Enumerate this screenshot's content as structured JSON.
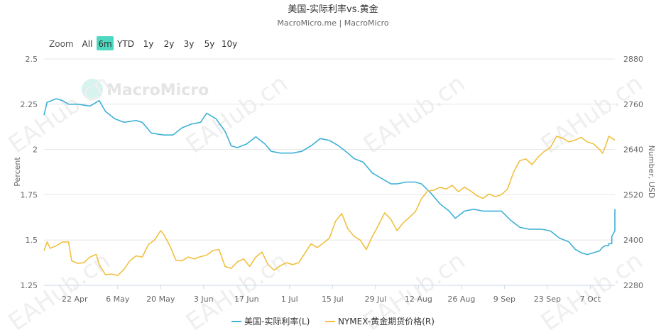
{
  "header": {
    "title": "美国-实际利率vs.黄金",
    "subtitle": "MacroMicro.me | MacroMicro"
  },
  "zoom": {
    "label": "Zoom",
    "buttons": [
      "All",
      "6m",
      "YTD",
      "1y",
      "2y",
      "3y",
      "5y",
      "10y"
    ],
    "selected": "6m"
  },
  "watermarks": {
    "logo_text": "MacroMicro",
    "repeat_text": "EAHub.cn"
  },
  "colors": {
    "rate": "#3fb1d6",
    "gold": "#f0c040",
    "zoom_selected": "#4fd8c0",
    "grid": "#e6e6e6"
  },
  "chart_data": {
    "type": "line",
    "x_ticks": [
      "22 Apr",
      "6 May",
      "20 May",
      "3 Jun",
      "17 Jun",
      "1 Jul",
      "15 Jul",
      "29 Jul",
      "12 Aug",
      "26 Aug",
      "9 Sep",
      "23 Sep",
      "7 Oct"
    ],
    "xrange": [
      "2024-04-12",
      "2024-10-15"
    ],
    "y_left": {
      "label": "Percent",
      "ticks": [
        "1.25",
        "1.5",
        "1.75",
        "2",
        "2.25",
        "2.5"
      ],
      "range": [
        1.25,
        2.5
      ]
    },
    "y_right": {
      "label": "Number, USD",
      "ticks": [
        "2280",
        "2400",
        "2520",
        "2640",
        "2760",
        "2880"
      ],
      "range": [
        2280,
        2880
      ]
    },
    "grid": true,
    "legend_position": "bottom-center",
    "series": [
      {
        "name": "美国-实际利率(L)",
        "axis": "left",
        "color": "#3fb1d6",
        "points": [
          [
            "2024-04-12",
            2.19
          ],
          [
            "2024-04-13",
            2.26
          ],
          [
            "2024-04-16",
            2.28
          ],
          [
            "2024-04-18",
            2.27
          ],
          [
            "2024-04-20",
            2.25
          ],
          [
            "2024-04-23",
            2.25
          ],
          [
            "2024-04-27",
            2.24
          ],
          [
            "2024-04-30",
            2.27
          ],
          [
            "2024-05-02",
            2.21
          ],
          [
            "2024-05-05",
            2.17
          ],
          [
            "2024-05-08",
            2.15
          ],
          [
            "2024-05-12",
            2.16
          ],
          [
            "2024-05-14",
            2.15
          ],
          [
            "2024-05-17",
            2.09
          ],
          [
            "2024-05-21",
            2.08
          ],
          [
            "2024-05-24",
            2.08
          ],
          [
            "2024-05-27",
            2.12
          ],
          [
            "2024-05-30",
            2.14
          ],
          [
            "2024-06-02",
            2.15
          ],
          [
            "2024-06-04",
            2.2
          ],
          [
            "2024-06-07",
            2.17
          ],
          [
            "2024-06-10",
            2.1
          ],
          [
            "2024-06-12",
            2.02
          ],
          [
            "2024-06-14",
            2.01
          ],
          [
            "2024-06-17",
            2.03
          ],
          [
            "2024-06-20",
            2.07
          ],
          [
            "2024-06-23",
            2.03
          ],
          [
            "2024-06-25",
            1.99
          ],
          [
            "2024-06-28",
            1.98
          ],
          [
            "2024-07-02",
            1.98
          ],
          [
            "2024-07-05",
            1.99
          ],
          [
            "2024-07-08",
            2.02
          ],
          [
            "2024-07-11",
            2.06
          ],
          [
            "2024-07-14",
            2.05
          ],
          [
            "2024-07-17",
            2.02
          ],
          [
            "2024-07-20",
            1.98
          ],
          [
            "2024-07-22",
            1.95
          ],
          [
            "2024-07-25",
            1.93
          ],
          [
            "2024-07-28",
            1.87
          ],
          [
            "2024-07-31",
            1.84
          ],
          [
            "2024-08-03",
            1.81
          ],
          [
            "2024-08-05",
            1.81
          ],
          [
            "2024-08-08",
            1.82
          ],
          [
            "2024-08-11",
            1.82
          ],
          [
            "2024-08-13",
            1.81
          ],
          [
            "2024-08-16",
            1.76
          ],
          [
            "2024-08-19",
            1.7
          ],
          [
            "2024-08-22",
            1.66
          ],
          [
            "2024-08-24",
            1.62
          ],
          [
            "2024-08-27",
            1.66
          ],
          [
            "2024-08-30",
            1.67
          ],
          [
            "2024-09-02",
            1.66
          ],
          [
            "2024-09-05",
            1.66
          ],
          [
            "2024-09-08",
            1.66
          ],
          [
            "2024-09-11",
            1.61
          ],
          [
            "2024-09-14",
            1.57
          ],
          [
            "2024-09-17",
            1.56
          ],
          [
            "2024-09-21",
            1.56
          ],
          [
            "2024-09-24",
            1.55
          ],
          [
            "2024-09-27",
            1.51
          ],
          [
            "2024-09-30",
            1.49
          ],
          [
            "2024-10-02",
            1.45
          ],
          [
            "2024-10-04",
            1.43
          ],
          [
            "2024-10-06",
            1.42
          ],
          [
            "2024-10-08",
            1.43
          ],
          [
            "2024-10-10",
            1.44
          ],
          [
            "2024-10-11",
            1.46
          ],
          [
            "2024-10-12",
            1.47
          ],
          [
            "2024-10-13",
            1.47
          ],
          [
            "2024-10-13",
            1.48
          ],
          [
            "2024-10-14",
            1.48
          ],
          [
            "2024-10-14",
            1.52
          ],
          [
            "2024-10-15",
            1.55
          ],
          [
            "2024-10-15",
            1.64
          ],
          [
            "2024-10-15",
            1.67
          ]
        ]
      },
      {
        "name": "NYMEX-黄金期货价格(R)",
        "axis": "right",
        "color": "#f0c040",
        "points": [
          [
            "2024-04-12",
            2372
          ],
          [
            "2024-04-13",
            2395
          ],
          [
            "2024-04-14",
            2378
          ],
          [
            "2024-04-16",
            2385
          ],
          [
            "2024-04-18",
            2395
          ],
          [
            "2024-04-20",
            2395
          ],
          [
            "2024-04-21",
            2345
          ],
          [
            "2024-04-23",
            2338
          ],
          [
            "2024-04-25",
            2340
          ],
          [
            "2024-04-27",
            2355
          ],
          [
            "2024-04-29",
            2362
          ],
          [
            "2024-04-30",
            2335
          ],
          [
            "2024-05-02",
            2308
          ],
          [
            "2024-05-04",
            2310
          ],
          [
            "2024-05-06",
            2306
          ],
          [
            "2024-05-08",
            2322
          ],
          [
            "2024-05-10",
            2345
          ],
          [
            "2024-05-12",
            2358
          ],
          [
            "2024-05-14",
            2355
          ],
          [
            "2024-05-16",
            2388
          ],
          [
            "2024-05-18",
            2400
          ],
          [
            "2024-05-20",
            2425
          ],
          [
            "2024-05-21",
            2415
          ],
          [
            "2024-05-23",
            2385
          ],
          [
            "2024-05-25",
            2346
          ],
          [
            "2024-05-27",
            2345
          ],
          [
            "2024-05-29",
            2355
          ],
          [
            "2024-05-31",
            2350
          ],
          [
            "2024-06-02",
            2356
          ],
          [
            "2024-06-04",
            2360
          ],
          [
            "2024-06-06",
            2372
          ],
          [
            "2024-06-08",
            2375
          ],
          [
            "2024-06-10",
            2330
          ],
          [
            "2024-06-12",
            2325
          ],
          [
            "2024-06-14",
            2342
          ],
          [
            "2024-06-16",
            2350
          ],
          [
            "2024-06-18",
            2330
          ],
          [
            "2024-06-20",
            2355
          ],
          [
            "2024-06-22",
            2368
          ],
          [
            "2024-06-24",
            2335
          ],
          [
            "2024-06-26",
            2320
          ],
          [
            "2024-06-28",
            2332
          ],
          [
            "2024-06-30",
            2340
          ],
          [
            "2024-07-02",
            2335
          ],
          [
            "2024-07-04",
            2340
          ],
          [
            "2024-07-06",
            2365
          ],
          [
            "2024-07-08",
            2390
          ],
          [
            "2024-07-10",
            2380
          ],
          [
            "2024-07-12",
            2392
          ],
          [
            "2024-07-14",
            2405
          ],
          [
            "2024-07-16",
            2450
          ],
          [
            "2024-07-18",
            2470
          ],
          [
            "2024-07-20",
            2430
          ],
          [
            "2024-07-22",
            2410
          ],
          [
            "2024-07-24",
            2400
          ],
          [
            "2024-07-26",
            2375
          ],
          [
            "2024-07-28",
            2410
          ],
          [
            "2024-07-30",
            2440
          ],
          [
            "2024-08-01",
            2472
          ],
          [
            "2024-08-03",
            2455
          ],
          [
            "2024-08-05",
            2425
          ],
          [
            "2024-08-07",
            2445
          ],
          [
            "2024-08-09",
            2460
          ],
          [
            "2024-08-11",
            2475
          ],
          [
            "2024-08-13",
            2510
          ],
          [
            "2024-08-15",
            2530
          ],
          [
            "2024-08-17",
            2532
          ],
          [
            "2024-08-19",
            2540
          ],
          [
            "2024-08-21",
            2535
          ],
          [
            "2024-08-23",
            2545
          ],
          [
            "2024-08-25",
            2528
          ],
          [
            "2024-08-27",
            2540
          ],
          [
            "2024-08-29",
            2530
          ],
          [
            "2024-08-31",
            2518
          ],
          [
            "2024-09-02",
            2510
          ],
          [
            "2024-09-04",
            2522
          ],
          [
            "2024-09-06",
            2515
          ],
          [
            "2024-09-08",
            2520
          ],
          [
            "2024-09-10",
            2535
          ],
          [
            "2024-09-12",
            2580
          ],
          [
            "2024-09-14",
            2610
          ],
          [
            "2024-09-16",
            2615
          ],
          [
            "2024-09-18",
            2600
          ],
          [
            "2024-09-20",
            2620
          ],
          [
            "2024-09-22",
            2635
          ],
          [
            "2024-09-24",
            2645
          ],
          [
            "2024-09-26",
            2675
          ],
          [
            "2024-09-28",
            2670
          ],
          [
            "2024-09-30",
            2660
          ],
          [
            "2024-10-02",
            2665
          ],
          [
            "2024-10-04",
            2672
          ],
          [
            "2024-10-06",
            2660
          ],
          [
            "2024-10-08",
            2655
          ],
          [
            "2024-10-10",
            2640
          ],
          [
            "2024-10-11",
            2630
          ],
          [
            "2024-10-12",
            2650
          ],
          [
            "2024-10-13",
            2675
          ],
          [
            "2024-10-14",
            2670
          ],
          [
            "2024-10-15",
            2665
          ]
        ]
      }
    ]
  }
}
